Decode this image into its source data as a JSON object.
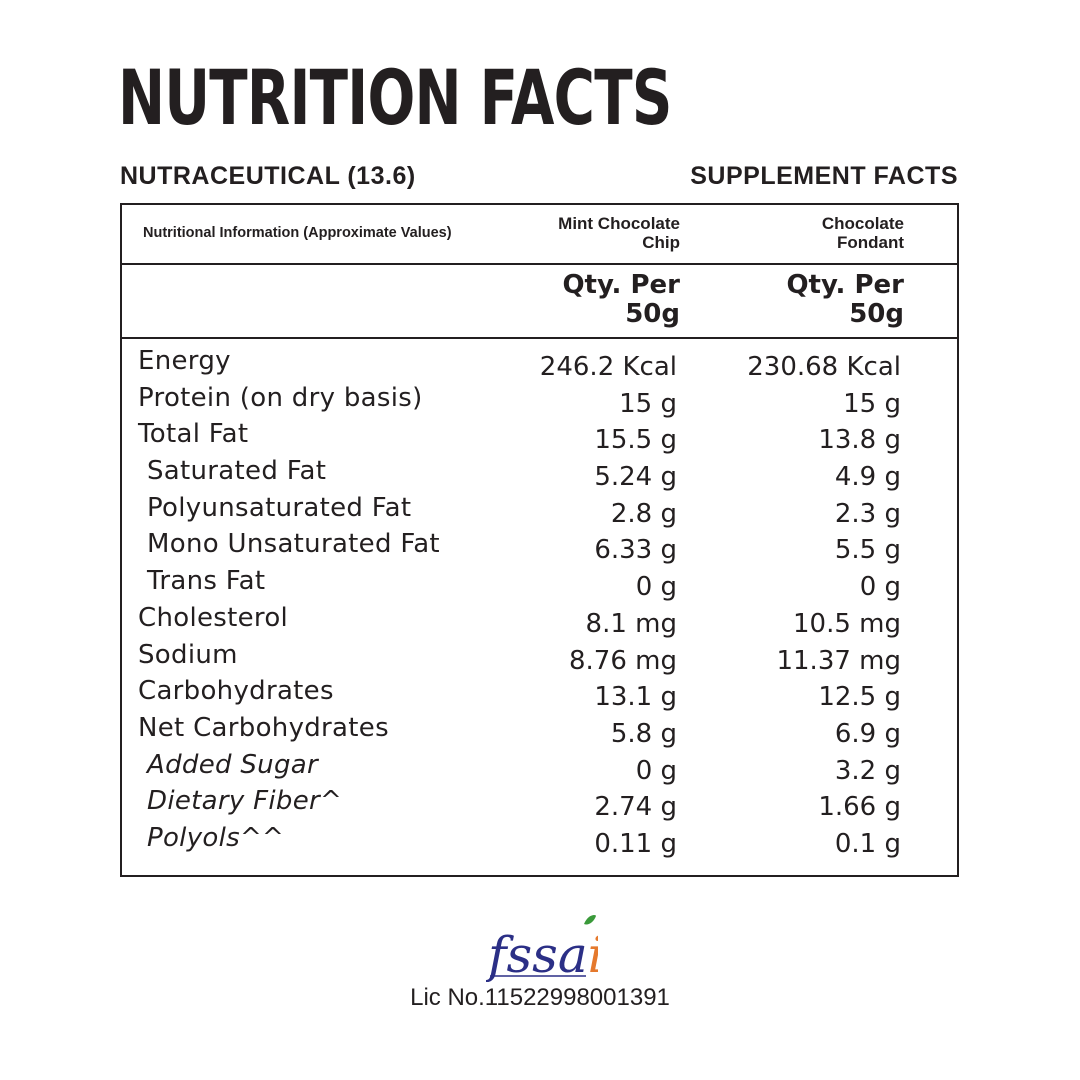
{
  "title": "NUTRITION FACTS",
  "subtitle_left": "NUTRACEUTICAL (13.6)",
  "subtitle_right": "SUPPLEMENT FACTS",
  "table": {
    "info_label": "Nutritional Information (Approximate Values)",
    "columns": [
      {
        "name_line1": "Mint Chocolate",
        "name_line2": "Chip",
        "qty_line1": "Qty. Per",
        "qty_line2": "50g"
      },
      {
        "name_line1": "Chocolate",
        "name_line2": "Fondant",
        "qty_line1": "Qty. Per",
        "qty_line2": "50g"
      }
    ],
    "rows": [
      {
        "label": "Energy",
        "v1": "246.2 Kcal",
        "v2": "230.68 Kcal"
      },
      {
        "label": "Protein (on dry basis)",
        "v1": "15 g",
        "v2": "15 g"
      },
      {
        "label": "Total Fat",
        "v1": "15.5 g",
        "v2": "13.8 g"
      },
      {
        "label": "Saturated Fat",
        "v1": "5.24 g",
        "v2": "4.9 g"
      },
      {
        "label": "Polyunsaturated Fat",
        "v1": "2.8 g",
        "v2": "2.3 g"
      },
      {
        "label": "Mono Unsaturated Fat",
        "v1": "6.33 g",
        "v2": "5.5 g"
      },
      {
        "label": "Trans Fat",
        "v1": "0 g",
        "v2": "0 g"
      },
      {
        "label": "Cholesterol",
        "v1": "8.1 mg",
        "v2": "10.5 mg"
      },
      {
        "label": "Sodium",
        "v1": "8.76 mg",
        "v2": "11.37 mg"
      },
      {
        "label": "Carbohydrates",
        "v1": "13.1 g",
        "v2": "12.5 g"
      },
      {
        "label": "Net Carbohydrates",
        "v1": "5.8 g",
        "v2": "6.9 g"
      },
      {
        "label": "Added Sugar",
        "v1": "0 g",
        "v2": "3.2 g"
      },
      {
        "label": "Dietary Fiber^",
        "v1": "2.74 g",
        "v2": "1.66 g"
      },
      {
        "label": "Polyols^^",
        "v1": "0.11 g",
        "v2": "0.1 g"
      }
    ]
  },
  "logo": {
    "text_main": "fssa",
    "text_accent": "i"
  },
  "license": "Lic No.11522998001391",
  "colors": {
    "text": "#231f20",
    "logo_blue": "#2b2f86",
    "logo_orange": "#e5792d",
    "logo_green": "#3a9a3a"
  }
}
